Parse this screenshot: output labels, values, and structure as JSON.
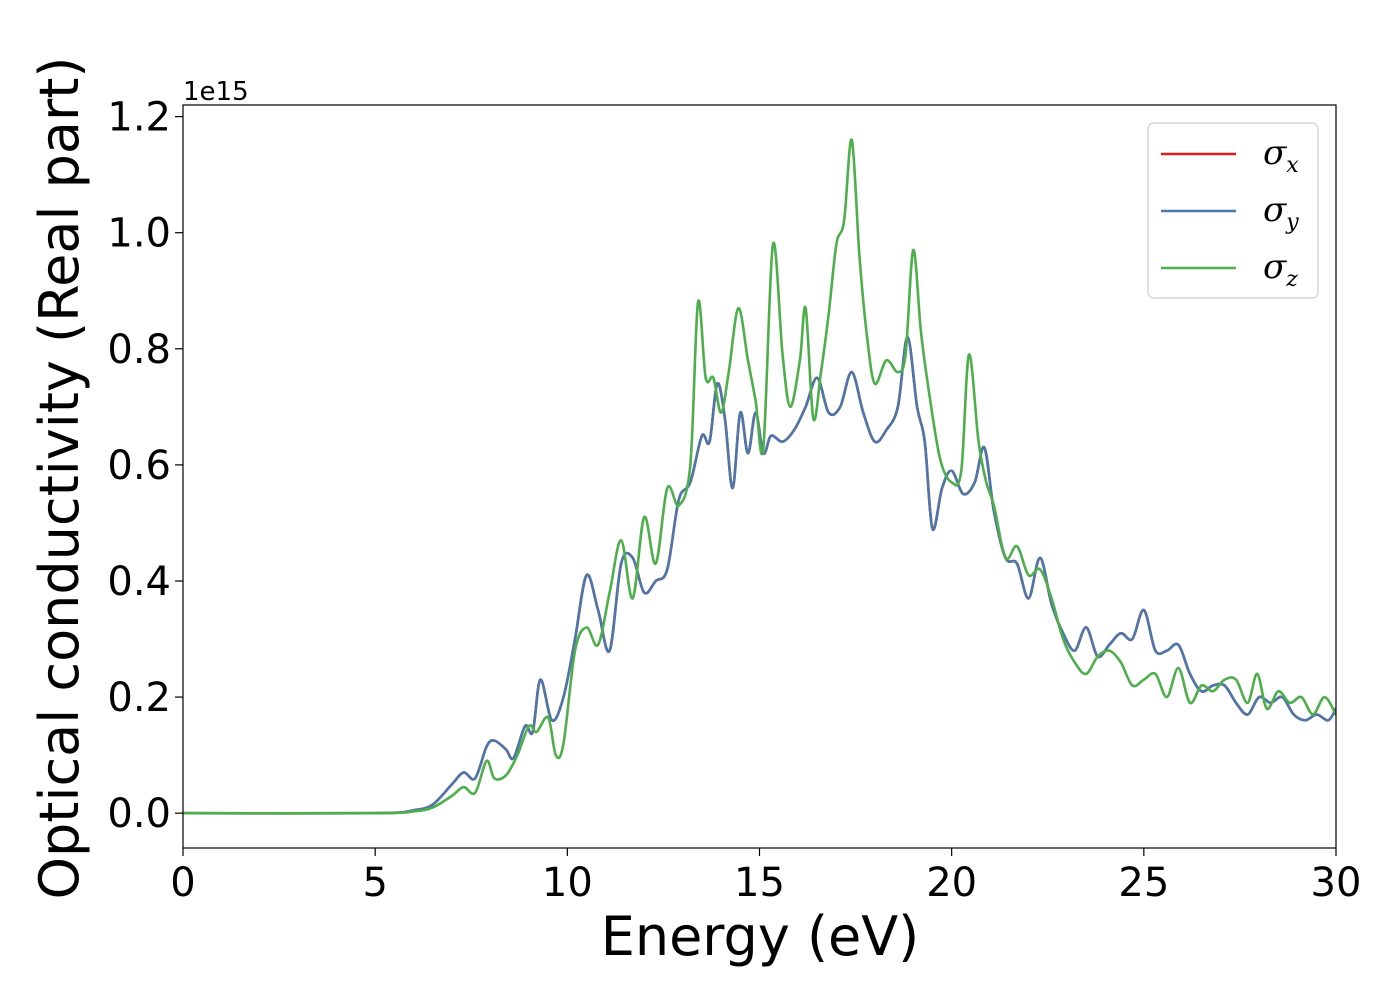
{
  "chart_data": {
    "type": "line",
    "xlabel": "Energy (eV)",
    "ylabel": "Optical conductivity (Real part)",
    "y_offset_label": "1e15",
    "xlim": [
      0,
      30
    ],
    "ylim": [
      -0.06,
      1.22
    ],
    "x_ticks": [
      0,
      5,
      10,
      15,
      20,
      25,
      30
    ],
    "x_tick_labels": [
      "0",
      "5",
      "10",
      "15",
      "20",
      "25",
      "30"
    ],
    "y_ticks": [
      0.0,
      0.2,
      0.4,
      0.6,
      0.8,
      1.0,
      1.2
    ],
    "y_tick_labels": [
      "0.0",
      "0.2",
      "0.4",
      "0.6",
      "0.8",
      "1.0",
      "1.2"
    ],
    "grid": false,
    "legend_position": "top-right",
    "series": [
      {
        "name": "σx",
        "legend_base": "σ",
        "legend_sub": "x",
        "color": "#e41a1c",
        "x": [
          0,
          5,
          6,
          6.5,
          7,
          7.3,
          7.6,
          7.9,
          8.1,
          8.4,
          8.6,
          8.9,
          9.1,
          9.3,
          9.6,
          9.9,
          10.2,
          10.5,
          10.8,
          11.1,
          11.4,
          11.7,
          12.0,
          12.3,
          12.6,
          12.9,
          13.2,
          13.5,
          13.7,
          13.9,
          14.1,
          14.3,
          14.5,
          14.7,
          14.9,
          15.1,
          15.3,
          15.6,
          15.9,
          16.2,
          16.5,
          16.8,
          17.1,
          17.4,
          17.7,
          18.0,
          18.3,
          18.6,
          18.85,
          19.1,
          19.3,
          19.5,
          19.75,
          20.0,
          20.3,
          20.6,
          20.85,
          21.1,
          21.4,
          21.7,
          22.0,
          22.3,
          22.6,
          22.9,
          23.2,
          23.5,
          23.8,
          24.1,
          24.4,
          24.7,
          25.0,
          25.3,
          25.6,
          25.9,
          26.2,
          26.5,
          26.8,
          27.1,
          27.4,
          27.7,
          28.0,
          28.3,
          28.6,
          28.9,
          29.2,
          29.5,
          29.8,
          30.0
        ],
        "y": [
          0,
          0,
          0.005,
          0.015,
          0.05,
          0.07,
          0.06,
          0.115,
          0.125,
          0.11,
          0.095,
          0.15,
          0.14,
          0.23,
          0.16,
          0.2,
          0.3,
          0.41,
          0.35,
          0.28,
          0.43,
          0.44,
          0.38,
          0.4,
          0.42,
          0.54,
          0.57,
          0.65,
          0.64,
          0.74,
          0.68,
          0.56,
          0.69,
          0.62,
          0.69,
          0.62,
          0.65,
          0.64,
          0.66,
          0.7,
          0.75,
          0.69,
          0.7,
          0.76,
          0.69,
          0.64,
          0.66,
          0.7,
          0.82,
          0.7,
          0.64,
          0.49,
          0.56,
          0.59,
          0.55,
          0.57,
          0.63,
          0.52,
          0.44,
          0.43,
          0.37,
          0.44,
          0.36,
          0.31,
          0.28,
          0.32,
          0.27,
          0.29,
          0.31,
          0.3,
          0.35,
          0.28,
          0.28,
          0.29,
          0.24,
          0.21,
          0.22,
          0.22,
          0.19,
          0.17,
          0.2,
          0.19,
          0.2,
          0.17,
          0.16,
          0.17,
          0.16,
          0.18
        ]
      },
      {
        "name": "σy",
        "legend_base": "σ",
        "legend_sub": "y",
        "color": "#4a78ad",
        "x": [
          0,
          5,
          6,
          6.5,
          7,
          7.3,
          7.6,
          7.9,
          8.1,
          8.4,
          8.6,
          8.9,
          9.1,
          9.3,
          9.6,
          9.9,
          10.2,
          10.5,
          10.8,
          11.1,
          11.4,
          11.7,
          12.0,
          12.3,
          12.6,
          12.9,
          13.2,
          13.5,
          13.7,
          13.9,
          14.1,
          14.3,
          14.5,
          14.7,
          14.9,
          15.1,
          15.3,
          15.6,
          15.9,
          16.2,
          16.5,
          16.8,
          17.1,
          17.4,
          17.7,
          18.0,
          18.3,
          18.6,
          18.85,
          19.1,
          19.3,
          19.5,
          19.75,
          20.0,
          20.3,
          20.6,
          20.85,
          21.1,
          21.4,
          21.7,
          22.0,
          22.3,
          22.6,
          22.9,
          23.2,
          23.5,
          23.8,
          24.1,
          24.4,
          24.7,
          25.0,
          25.3,
          25.6,
          25.9,
          26.2,
          26.5,
          26.8,
          27.1,
          27.4,
          27.7,
          28.0,
          28.3,
          28.6,
          28.9,
          29.2,
          29.5,
          29.8,
          30.0
        ],
        "y": [
          0,
          0,
          0.005,
          0.015,
          0.05,
          0.07,
          0.06,
          0.115,
          0.125,
          0.11,
          0.095,
          0.15,
          0.14,
          0.23,
          0.16,
          0.2,
          0.3,
          0.41,
          0.35,
          0.28,
          0.43,
          0.44,
          0.38,
          0.4,
          0.42,
          0.54,
          0.57,
          0.65,
          0.64,
          0.74,
          0.68,
          0.56,
          0.69,
          0.62,
          0.69,
          0.62,
          0.65,
          0.64,
          0.66,
          0.7,
          0.75,
          0.69,
          0.7,
          0.76,
          0.69,
          0.64,
          0.66,
          0.7,
          0.82,
          0.7,
          0.64,
          0.49,
          0.56,
          0.59,
          0.55,
          0.57,
          0.63,
          0.52,
          0.44,
          0.43,
          0.37,
          0.44,
          0.36,
          0.31,
          0.28,
          0.32,
          0.27,
          0.29,
          0.31,
          0.3,
          0.35,
          0.28,
          0.28,
          0.29,
          0.24,
          0.21,
          0.22,
          0.22,
          0.19,
          0.17,
          0.2,
          0.19,
          0.2,
          0.17,
          0.16,
          0.17,
          0.16,
          0.18
        ]
      },
      {
        "name": "σz",
        "legend_base": "σ",
        "legend_sub": "z",
        "color": "#4daf4a",
        "x": [
          0,
          5,
          6,
          6.5,
          7,
          7.3,
          7.6,
          7.9,
          8.1,
          8.4,
          8.7,
          9.0,
          9.2,
          9.5,
          9.7,
          9.9,
          10.2,
          10.5,
          10.8,
          11.1,
          11.4,
          11.7,
          12.0,
          12.3,
          12.6,
          12.9,
          13.2,
          13.4,
          13.6,
          13.8,
          14.0,
          14.2,
          14.45,
          14.7,
          14.9,
          15.1,
          15.35,
          15.6,
          15.8,
          16.05,
          16.2,
          16.4,
          16.6,
          16.8,
          17.0,
          17.2,
          17.4,
          17.6,
          17.8,
          18.0,
          18.3,
          18.6,
          18.8,
          19.0,
          19.2,
          19.4,
          19.7,
          20.0,
          20.25,
          20.45,
          20.7,
          20.9,
          21.1,
          21.4,
          21.7,
          22.0,
          22.3,
          22.6,
          22.9,
          23.2,
          23.5,
          23.8,
          24.1,
          24.4,
          24.7,
          25.0,
          25.3,
          25.6,
          25.9,
          26.2,
          26.5,
          26.8,
          27.1,
          27.4,
          27.7,
          27.95,
          28.2,
          28.5,
          28.8,
          29.1,
          29.4,
          29.7,
          30.0
        ],
        "y": [
          0,
          0,
          0.003,
          0.01,
          0.03,
          0.045,
          0.035,
          0.09,
          0.06,
          0.065,
          0.1,
          0.15,
          0.14,
          0.165,
          0.1,
          0.12,
          0.28,
          0.32,
          0.29,
          0.38,
          0.47,
          0.37,
          0.51,
          0.43,
          0.56,
          0.53,
          0.6,
          0.88,
          0.75,
          0.75,
          0.69,
          0.76,
          0.87,
          0.78,
          0.71,
          0.63,
          0.98,
          0.79,
          0.7,
          0.78,
          0.87,
          0.68,
          0.76,
          0.86,
          0.98,
          1.02,
          1.16,
          0.96,
          0.82,
          0.74,
          0.78,
          0.76,
          0.79,
          0.97,
          0.83,
          0.73,
          0.61,
          0.57,
          0.59,
          0.79,
          0.64,
          0.57,
          0.53,
          0.44,
          0.46,
          0.41,
          0.42,
          0.37,
          0.3,
          0.26,
          0.24,
          0.27,
          0.28,
          0.26,
          0.22,
          0.23,
          0.24,
          0.2,
          0.25,
          0.19,
          0.22,
          0.21,
          0.23,
          0.23,
          0.19,
          0.24,
          0.18,
          0.21,
          0.19,
          0.2,
          0.17,
          0.2,
          0.17
        ]
      }
    ]
  }
}
